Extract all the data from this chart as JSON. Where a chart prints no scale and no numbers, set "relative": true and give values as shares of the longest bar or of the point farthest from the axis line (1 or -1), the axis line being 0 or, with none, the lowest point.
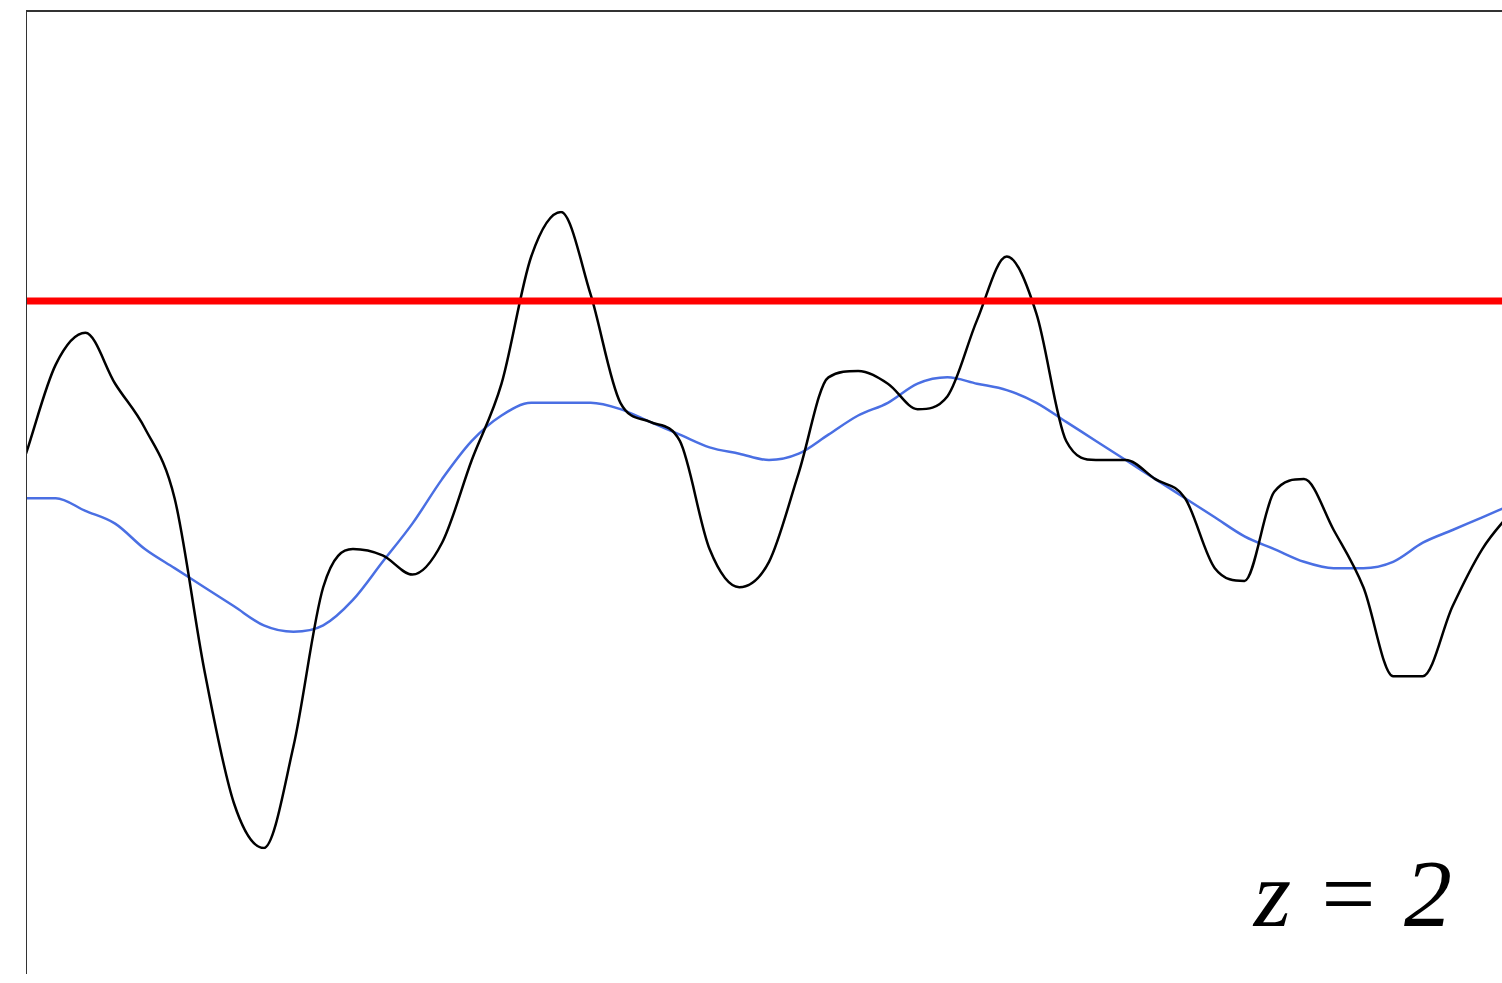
{
  "chart_data": {
    "type": "line",
    "relative": true,
    "marker": "none",
    "line_style": "solid",
    "legend": false,
    "grid": false,
    "tick_labels": false,
    "categories": [
      null,
      null,
      null,
      null,
      null,
      null,
      null,
      null,
      null,
      null,
      null,
      null,
      null,
      null,
      null,
      null,
      null,
      null,
      null,
      null,
      null,
      null,
      null,
      null,
      null,
      null,
      null,
      null,
      null,
      null,
      null,
      null,
      null,
      null,
      null,
      null,
      null,
      null,
      null,
      null,
      null,
      null,
      null,
      null,
      null,
      null,
      null,
      null,
      null,
      null,
      null
    ],
    "series": [
      {
        "color": "#000000",
        "values": [
          0.62,
          0.76,
          0.81,
          0.73,
          0.66,
          0.55,
          0.28,
          0.07,
          0.0,
          0.16,
          0.41,
          0.47,
          0.46,
          0.43,
          0.48,
          0.61,
          0.73,
          0.93,
          1.0,
          0.87,
          0.7,
          0.67,
          0.64,
          0.47,
          0.41,
          0.45,
          0.59,
          0.74,
          0.75,
          0.73,
          0.69,
          0.71,
          0.83,
          0.93,
          0.84,
          0.64,
          0.61,
          0.61,
          0.58,
          0.55,
          0.44,
          0.42,
          0.56,
          0.58,
          0.5,
          0.41,
          0.27,
          0.27,
          0.38,
          0.47,
          0.53
        ]
      },
      {
        "color": "#4a6fe3",
        "values": [
          0.55,
          0.55,
          0.53,
          0.51,
          0.47,
          0.44,
          0.41,
          0.38,
          0.35,
          0.34,
          0.35,
          0.39,
          0.45,
          0.51,
          0.58,
          0.64,
          0.68,
          0.7,
          0.7,
          0.7,
          0.69,
          0.67,
          0.65,
          0.63,
          0.62,
          0.61,
          0.62,
          0.65,
          0.68,
          0.7,
          0.73,
          0.74,
          0.73,
          0.72,
          0.7,
          0.67,
          0.64,
          0.61,
          0.58,
          0.55,
          0.52,
          0.49,
          0.47,
          0.45,
          0.44,
          0.44,
          0.45,
          0.48,
          0.5,
          0.52,
          0.54
        ]
      }
    ],
    "ref_lines": [
      {
        "axis": "y",
        "value": 0.86,
        "color": "#ff0000",
        "line_style": "solid"
      }
    ],
    "annotations": [
      "z = 2"
    ]
  }
}
